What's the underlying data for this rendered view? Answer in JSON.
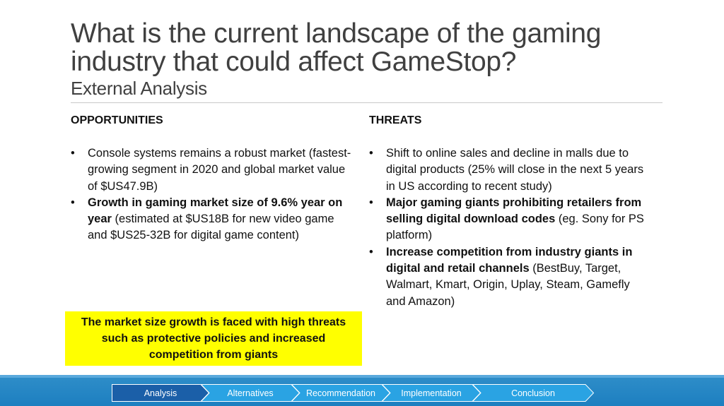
{
  "slide": {
    "title": "What is the current landscape of the gaming industry that could affect GameStop?",
    "subtitle": "External Analysis"
  },
  "opportunities": {
    "heading": "OPPORTUNITIES",
    "items": [
      {
        "bold": "",
        "text": "Console systems remains a robust market (fastest-growing segment in 2020 and global market value of $US47.9B)"
      },
      {
        "bold": "Growth in gaming market size of 9.6% year on year",
        "text": " (estimated at $US18B for new video game and $US25-32B for digital game content)"
      }
    ]
  },
  "threats": {
    "heading": "THREATS",
    "items": [
      {
        "bold": "",
        "text": "Shift to online sales and decline in malls due to digital products (25% will close in the next 5 years in US according to recent study)"
      },
      {
        "bold": "Major gaming giants prohibiting retailers from selling digital download codes",
        "text": " (eg. Sony for PS platform)"
      },
      {
        "bold": "Increase competition from industry giants in digital and retail channels",
        "text": " (BestBuy, Target, Walmart, Kmart, Origin, Uplay, Steam, Gamefly and Amazon)"
      }
    ]
  },
  "callout": {
    "text": "The market size growth is faced with high threats such as protective policies and increased competition from giants",
    "color": "#ffff00"
  },
  "nav": {
    "steps": [
      "Analysis",
      "Alternatives",
      "Recommendation",
      "Implementation",
      "Conclusion"
    ],
    "active_index": 0,
    "active_color": "#1b5fa8",
    "inactive_color": "#2aa3e3"
  },
  "bullet_glyph": "•"
}
